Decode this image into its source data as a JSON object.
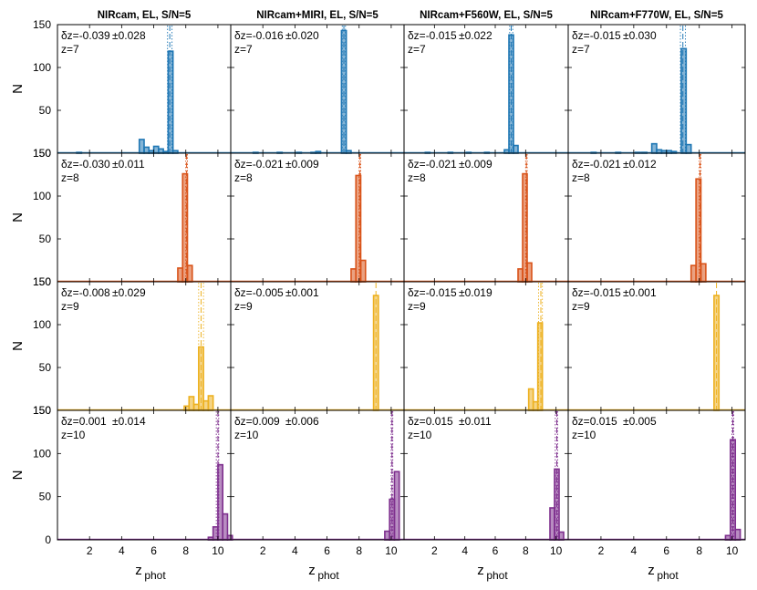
{
  "figure": {
    "col_titles": [
      "NIRcam, EL, S/N=5",
      "NIRcam+MIRI, EL, S/N=5",
      "NIRcam+F560W, EL, S/N=5",
      "NIRcam+F770W, EL, S/N=5"
    ],
    "ylabel": "N",
    "xlabel_main": "z",
    "xlabel_sub": "phot",
    "xticks": [
      2,
      4,
      6,
      8,
      10
    ],
    "yticks": [
      50,
      100,
      150
    ],
    "row_bottom_tick": "150",
    "last_row_bottom_tick": "0"
  },
  "chart_data": {
    "type": "bar",
    "layout": "4x4 grid of step histograms, rows share redshift, columns share filter set",
    "xlim": [
      0,
      10.8
    ],
    "ylim": [
      0,
      150
    ],
    "bin_width": 0.3,
    "colors": {
      "z7": "#1f77b4",
      "z8": "#d95319",
      "z9": "#edb120",
      "z10": "#7e2f8e"
    },
    "rows": [
      {
        "z_label": "z=7",
        "z": 7,
        "color": "#1f77b4",
        "panels": [
          {
            "dz": "δz=-0.039",
            "sig": "±0.028",
            "median": 7.0,
            "lo": 6.86,
            "hi": 7.14,
            "bins": [
              [
                1.2,
                1
              ],
              [
                5.1,
                16
              ],
              [
                5.4,
                7
              ],
              [
                5.7,
                3
              ],
              [
                6.0,
                8
              ],
              [
                6.3,
                5
              ],
              [
                6.6,
                2
              ],
              [
                6.9,
                119
              ],
              [
                7.2,
                3
              ]
            ]
          },
          {
            "dz": "δz=-0.016",
            "sig": "±0.020",
            "median": 7.05,
            "lo": 6.95,
            "hi": 7.15,
            "bins": [
              [
                1.4,
                1
              ],
              [
                2.9,
                1
              ],
              [
                4.1,
                1
              ],
              [
                5.0,
                1
              ],
              [
                5.3,
                2
              ],
              [
                6.9,
                143
              ],
              [
                7.2,
                3
              ]
            ]
          },
          {
            "dz": "δz=-0.015",
            "sig": "±0.022",
            "median": 7.05,
            "lo": 6.95,
            "hi": 7.15,
            "bins": [
              [
                1.4,
                1
              ],
              [
                2.9,
                1
              ],
              [
                4.1,
                1
              ],
              [
                5.3,
                1
              ],
              [
                6.6,
                4
              ],
              [
                6.9,
                138
              ],
              [
                7.2,
                9
              ]
            ]
          },
          {
            "dz": "δz=-0.015",
            "sig": "±0.030",
            "median": 7.0,
            "lo": 6.85,
            "hi": 7.15,
            "bins": [
              [
                1.4,
                1
              ],
              [
                2.9,
                1
              ],
              [
                4.1,
                1
              ],
              [
                4.5,
                1
              ],
              [
                5.1,
                11
              ],
              [
                5.4,
                4
              ],
              [
                5.7,
                3
              ],
              [
                6.0,
                3
              ],
              [
                6.3,
                2
              ],
              [
                6.9,
                122
              ],
              [
                7.2,
                10
              ]
            ]
          }
        ]
      },
      {
        "z_label": "z=8",
        "z": 8,
        "color": "#d95319",
        "panels": [
          {
            "dz": "δz=-0.030",
            "sig": "±0.011",
            "median": 8.05,
            "lo": 8.0,
            "hi": 8.1,
            "bins": [
              [
                7.5,
                16
              ],
              [
                7.8,
                126
              ],
              [
                8.1,
                19
              ]
            ]
          },
          {
            "dz": "δz=-0.021",
            "sig": "±0.009",
            "median": 8.05,
            "lo": 8.0,
            "hi": 8.1,
            "bins": [
              [
                7.5,
                15
              ],
              [
                7.8,
                124
              ],
              [
                8.1,
                25
              ]
            ]
          },
          {
            "dz": "δz=-0.021",
            "sig": "±0.009",
            "median": 8.05,
            "lo": 8.0,
            "hi": 8.1,
            "bins": [
              [
                7.5,
                15
              ],
              [
                7.8,
                126
              ],
              [
                8.1,
                22
              ]
            ]
          },
          {
            "dz": "δz=-0.021",
            "sig": "±0.012",
            "median": 8.05,
            "lo": 8.0,
            "hi": 8.1,
            "bins": [
              [
                7.5,
                19
              ],
              [
                7.8,
                120
              ],
              [
                8.1,
                21
              ]
            ]
          }
        ]
      },
      {
        "z_label": "z=9",
        "z": 9,
        "color": "#edb120",
        "panels": [
          {
            "dz": "δz=-0.008",
            "sig": "±0.029",
            "median": 8.95,
            "lo": 8.8,
            "hi": 9.1,
            "bins": [
              [
                7.9,
                5
              ],
              [
                8.2,
                16
              ],
              [
                8.5,
                7
              ],
              [
                8.8,
                74
              ],
              [
                9.1,
                11
              ],
              [
                9.4,
                17
              ]
            ]
          },
          {
            "dz": "δz=-0.005",
            "sig": "±0.001",
            "median": 9.05,
            "lo": 9.05,
            "hi": 9.05,
            "bins": [
              [
                8.9,
                134
              ]
            ]
          },
          {
            "dz": "δz=-0.015",
            "sig": "±0.019",
            "median": 9.0,
            "lo": 8.85,
            "hi": 9.1,
            "bins": [
              [
                8.2,
                25
              ],
              [
                8.5,
                10
              ],
              [
                8.8,
                102
              ]
            ]
          },
          {
            "dz": "δz=-0.015",
            "sig": "±0.001",
            "median": 9.05,
            "lo": 9.05,
            "hi": 9.05,
            "bins": [
              [
                8.9,
                134
              ]
            ]
          }
        ]
      },
      {
        "z_label": "z=10",
        "z": 10,
        "color": "#7e2f8e",
        "panels": [
          {
            "dz": "δz=0.001",
            "sig": "±0.014",
            "median": 10.0,
            "lo": 9.9,
            "hi": 10.05,
            "bins": [
              [
                9.4,
                3
              ],
              [
                9.7,
                15
              ],
              [
                10.0,
                87
              ],
              [
                10.3,
                30
              ],
              [
                10.6,
                5
              ]
            ]
          },
          {
            "dz": "δz=0.009",
            "sig": "±0.006",
            "median": 10.05,
            "lo": 10.0,
            "hi": 10.1,
            "bins": [
              [
                9.6,
                10
              ],
              [
                9.9,
                47
              ],
              [
                10.2,
                79
              ]
            ]
          },
          {
            "dz": "δz=0.015",
            "sig": "±0.011",
            "median": 10.05,
            "lo": 9.95,
            "hi": 10.1,
            "bins": [
              [
                9.6,
                37
              ],
              [
                9.9,
                82
              ],
              [
                10.2,
                9
              ]
            ]
          },
          {
            "dz": "δz=0.015",
            "sig": "±0.005",
            "median": 10.05,
            "lo": 10.0,
            "hi": 10.1,
            "bins": [
              [
                9.6,
                5
              ],
              [
                9.9,
                116
              ],
              [
                10.2,
                12
              ]
            ]
          }
        ]
      }
    ]
  }
}
